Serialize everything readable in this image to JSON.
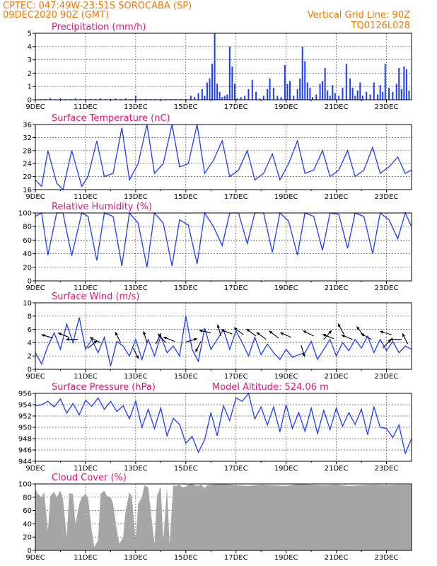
{
  "header": {
    "line1": "CPTEC:   047:49W-23:51S   SOROCABA (SP)",
    "line2": "09DEC2020 90Z (GMT)",
    "right1": "Vertical Grid Line: 90Z",
    "right2": "TQ0126L028"
  },
  "colors": {
    "header": "#f07800",
    "panel_title": "#e0157a",
    "series": "#1c3cff",
    "cloud": "#a6a6a6",
    "grid": "#555555"
  },
  "x_axis": {
    "labels": [
      "9DEC",
      "11DEC",
      "13DEC",
      "15DEC",
      "17DEC",
      "19DEC",
      "21DEC",
      "23DEC"
    ],
    "start_day": 9,
    "end_day": 24
  },
  "chart_data": [
    {
      "type": "bar",
      "title": "Precipitation (mm/h)",
      "ylim": [
        0,
        5
      ],
      "yticks": [
        "0",
        "1",
        "2",
        "3",
        "4",
        "5"
      ],
      "series": [
        {
          "x": [
            9.2,
            9.4,
            9.6,
            9.8,
            10.0,
            10.2,
            10.4,
            10.6,
            10.8,
            11.0,
            11.2,
            11.4,
            11.6,
            11.8,
            12.0,
            12.2,
            12.4,
            12.6,
            12.8,
            13.0,
            13.2,
            13.4,
            13.6,
            13.8,
            14.0,
            14.2,
            14.4,
            14.6,
            14.8,
            15.0,
            15.2,
            15.35,
            15.5,
            15.65,
            15.75,
            15.85,
            15.95,
            16.05,
            16.15,
            16.25,
            16.35,
            16.45,
            16.55,
            16.65,
            16.75,
            16.85,
            16.95,
            17.05,
            17.2,
            17.35,
            17.5,
            17.65,
            17.8,
            17.95,
            18.1,
            18.25,
            18.35,
            18.5,
            18.65,
            18.8,
            18.95,
            19.05,
            19.15,
            19.3,
            19.45,
            19.55,
            19.65,
            19.75,
            19.85,
            19.95,
            20.05,
            20.2,
            20.35,
            20.45,
            20.55,
            20.65,
            20.75,
            20.85,
            20.95,
            21.1,
            21.25,
            21.4,
            21.55,
            21.65,
            21.75,
            21.85,
            21.95,
            22.05,
            22.2,
            22.35,
            22.5,
            22.65,
            22.75,
            22.85,
            22.95,
            23.1,
            23.25,
            23.4,
            23.5,
            23.6,
            23.7,
            23.8,
            23.9
          ],
          "values": [
            0.05,
            0.05,
            0.1,
            0.05,
            0.1,
            0.05,
            0.05,
            0.1,
            0.05,
            0.05,
            0.05,
            0.05,
            0.1,
            0.05,
            0.05,
            0.1,
            0.05,
            0.1,
            0.05,
            0.3,
            0.05,
            0.05,
            0.05,
            0.05,
            0.05,
            0.05,
            0.05,
            0.05,
            0.05,
            0.05,
            0.3,
            0.2,
            0.5,
            0.8,
            0.3,
            1.3,
            1.6,
            2.7,
            5.0,
            1.2,
            0.6,
            0.2,
            0.3,
            0.4,
            4.0,
            2.5,
            1.2,
            0.1,
            0.2,
            0.3,
            0.8,
            1.5,
            0.6,
            0.1,
            0.3,
            0.8,
            1.6,
            0.9,
            0.3,
            0.2,
            2.6,
            1.2,
            1.4,
            0.3,
            0.8,
            1.6,
            4.0,
            2.9,
            1.3,
            0.9,
            0.2,
            0.4,
            1.2,
            1.4,
            2.4,
            0.7,
            0.3,
            1.1,
            0.5,
            0.3,
            0.9,
            2.7,
            1.6,
            0.9,
            0.3,
            0.7,
            1.3,
            0.3,
            0.6,
            0.4,
            1.3,
            0.4,
            1.1,
            0.6,
            2.7,
            0.9,
            0.6,
            1.2,
            2.4,
            0.8,
            2.5,
            2.3,
            0.7
          ]
        }
      ]
    },
    {
      "type": "line",
      "title": "Surface Temperature (nC)",
      "ylim": [
        16,
        36
      ],
      "yticks": [
        "16",
        "20",
        "24",
        "28",
        "32",
        "36"
      ],
      "series": [
        {
          "x": [
            9.0,
            9.25,
            9.5,
            9.85,
            10.1,
            10.45,
            10.85,
            11.1,
            11.45,
            11.75,
            12.1,
            12.45,
            12.75,
            13.1,
            13.45,
            13.75,
            14.1,
            14.45,
            14.75,
            15.1,
            15.45,
            15.75,
            16.1,
            16.45,
            16.75,
            17.1,
            17.45,
            17.75,
            18.1,
            18.45,
            18.75,
            19.1,
            19.45,
            19.75,
            20.1,
            20.45,
            20.75,
            21.1,
            21.45,
            21.75,
            22.1,
            22.45,
            22.75,
            23.1,
            23.45,
            23.75,
            24.0
          ],
          "values": [
            19,
            17,
            28,
            18,
            16,
            28,
            17,
            20,
            31,
            20,
            21,
            35,
            19,
            24,
            36,
            21,
            24,
            36,
            23,
            24,
            36,
            21,
            25,
            31,
            20,
            22,
            28,
            19,
            21,
            27,
            19,
            24,
            31,
            21,
            22,
            28,
            20,
            22,
            28,
            20,
            22,
            29,
            21,
            23,
            26,
            21,
            22
          ]
        }
      ]
    },
    {
      "type": "line",
      "title": "Relative Humidity (%)",
      "ylim": [
        0,
        100
      ],
      "yticks": [
        "0",
        "20",
        "40",
        "60",
        "80",
        "100"
      ],
      "series": [
        {
          "x": [
            9.0,
            9.25,
            9.5,
            9.85,
            10.1,
            10.45,
            10.85,
            11.1,
            11.45,
            11.75,
            12.1,
            12.45,
            12.75,
            13.1,
            13.45,
            13.75,
            14.1,
            14.45,
            14.75,
            15.1,
            15.45,
            15.75,
            16.1,
            16.45,
            16.75,
            17.1,
            17.45,
            17.75,
            18.1,
            18.45,
            18.75,
            19.1,
            19.45,
            19.75,
            20.1,
            20.45,
            20.75,
            21.1,
            21.45,
            21.75,
            22.1,
            22.45,
            22.75,
            23.1,
            23.45,
            23.75,
            24.0
          ],
          "values": [
            95,
            100,
            38,
            100,
            100,
            37,
            100,
            95,
            30,
            100,
            95,
            22,
            100,
            85,
            20,
            100,
            85,
            22,
            90,
            82,
            25,
            100,
            80,
            52,
            100,
            100,
            55,
            100,
            100,
            42,
            100,
            88,
            38,
            100,
            95,
            45,
            100,
            98,
            48,
            100,
            95,
            40,
            100,
            90,
            62,
            100,
            80
          ]
        }
      ]
    },
    {
      "type": "line",
      "title": "Surface Wind (m/s)",
      "ylim": [
        0,
        10
      ],
      "yticks": [
        "0",
        "2",
        "4",
        "6",
        "8",
        "10"
      ],
      "series": [
        {
          "x": [
            9.0,
            9.25,
            9.5,
            9.75,
            10.0,
            10.25,
            10.5,
            10.75,
            11.0,
            11.25,
            11.5,
            11.75,
            12.0,
            12.25,
            12.5,
            12.75,
            13.0,
            13.25,
            13.5,
            13.75,
            14.0,
            14.25,
            14.5,
            14.75,
            15.0,
            15.25,
            15.5,
            15.75,
            16.0,
            16.25,
            16.5,
            16.75,
            17.0,
            17.25,
            17.5,
            17.75,
            18.0,
            18.25,
            18.5,
            18.75,
            19.0,
            19.25,
            19.5,
            19.75,
            20.0,
            20.25,
            20.5,
            20.75,
            21.0,
            21.25,
            21.5,
            21.75,
            22.0,
            22.25,
            22.5,
            22.75,
            23.0,
            23.25,
            23.5,
            23.75,
            24.0
          ],
          "values": [
            2.5,
            0.8,
            3.5,
            5.5,
            3.0,
            6.8,
            4.0,
            7.8,
            3.0,
            4.5,
            2.5,
            4.8,
            0.5,
            4.2,
            3.5,
            2.0,
            4.5,
            1.5,
            4.5,
            2.0,
            5.0,
            2.5,
            3.5,
            2.0,
            8.0,
            3.0,
            1.2,
            6.2,
            3.0,
            4.5,
            6.0,
            3.0,
            5.8,
            4.0,
            2.0,
            4.8,
            2.2,
            3.8,
            2.5,
            1.5,
            3.0,
            1.8,
            2.2,
            2.5,
            4.2,
            1.5,
            3.0,
            4.5,
            2.0,
            4.0,
            2.8,
            4.5,
            3.2,
            5.0,
            2.5,
            4.5,
            2.8,
            4.2,
            2.5,
            3.5,
            3.0
          ]
        }
      ],
      "vectors": [
        {
          "x": 9.7,
          "y": 4.7,
          "u": -1.0,
          "v": 0.3
        },
        {
          "x": 10.35,
          "y": 4.8,
          "u": -1.0,
          "v": 0.4
        },
        {
          "x": 10.7,
          "y": 4.5,
          "u": -1.0,
          "v": 0.0
        },
        {
          "x": 11.1,
          "y": 3.2,
          "u": 1.0,
          "v": 0.8
        },
        {
          "x": 11.6,
          "y": 4.0,
          "u": -1.0,
          "v": 0.5
        },
        {
          "x": 12.4,
          "y": 4.0,
          "u": -0.5,
          "v": 1.0
        },
        {
          "x": 12.9,
          "y": 3.2,
          "u": 0.5,
          "v": -1.0
        },
        {
          "x": 13.45,
          "y": 4.0,
          "u": -0.3,
          "v": 1.0
        },
        {
          "x": 13.8,
          "y": 3.8,
          "u": 0.5,
          "v": 1.0
        },
        {
          "x": 14.2,
          "y": 4.0,
          "u": -0.7,
          "v": 0.8
        },
        {
          "x": 14.55,
          "y": 4.2,
          "u": -1.0,
          "v": 0.4
        },
        {
          "x": 15.0,
          "y": 4.1,
          "u": 1.0,
          "v": 0.3
        },
        {
          "x": 15.6,
          "y": 4.2,
          "u": -0.5,
          "v": -1.0
        },
        {
          "x": 16.0,
          "y": 5.5,
          "u": -1.0,
          "v": 0.2
        },
        {
          "x": 16.4,
          "y": 5.0,
          "u": -0.3,
          "v": 1.0
        },
        {
          "x": 16.85,
          "y": 5.3,
          "u": -1.0,
          "v": 0.4
        },
        {
          "x": 17.3,
          "y": 5.2,
          "u": -0.8,
          "v": 0.6
        },
        {
          "x": 17.8,
          "y": 5.0,
          "u": -0.8,
          "v": 0.6
        },
        {
          "x": 18.2,
          "y": 4.5,
          "u": -0.8,
          "v": 0.6
        },
        {
          "x": 18.7,
          "y": 4.7,
          "u": -0.8,
          "v": 0.6
        },
        {
          "x": 19.2,
          "y": 4.8,
          "u": -0.9,
          "v": 0.4
        },
        {
          "x": 19.6,
          "y": 3.6,
          "u": 0.3,
          "v": -1.0
        },
        {
          "x": 20.1,
          "y": 5.0,
          "u": -1.0,
          "v": 0.5
        },
        {
          "x": 20.5,
          "y": 4.5,
          "u": 0.7,
          "v": 0.8
        },
        {
          "x": 20.9,
          "y": 4.6,
          "u": -1.0,
          "v": 0.4
        },
        {
          "x": 21.3,
          "y": 5.3,
          "u": -0.5,
          "v": 0.9
        },
        {
          "x": 21.65,
          "y": 4.5,
          "u": -1.0,
          "v": 0.4
        },
        {
          "x": 22.1,
          "y": 5.0,
          "u": -0.6,
          "v": 0.8
        },
        {
          "x": 22.4,
          "y": 4.5,
          "u": -0.9,
          "v": 0.5
        },
        {
          "x": 22.85,
          "y": 3.2,
          "u": 0.8,
          "v": 0.8
        },
        {
          "x": 23.2,
          "y": 5.2,
          "u": -1.0,
          "v": 0.3
        },
        {
          "x": 23.6,
          "y": 4.5,
          "u": -1.0,
          "v": 0.0
        },
        {
          "x": 23.85,
          "y": 3.8,
          "u": -0.5,
          "v": 1.0
        }
      ]
    },
    {
      "type": "line",
      "title": "Surface Pressure (hPa)",
      "annotation": "Model Altitude: 524.06 m",
      "ylim": [
        944,
        956
      ],
      "yticks": [
        "944",
        "946",
        "948",
        "950",
        "952",
        "954",
        "956"
      ],
      "series": [
        {
          "x": [
            9.0,
            9.25,
            9.5,
            9.75,
            10.0,
            10.25,
            10.5,
            10.75,
            11.0,
            11.25,
            11.5,
            11.75,
            12.0,
            12.25,
            12.5,
            12.75,
            13.0,
            13.25,
            13.5,
            13.75,
            14.0,
            14.25,
            14.5,
            14.75,
            15.0,
            15.25,
            15.5,
            15.75,
            16.0,
            16.25,
            16.5,
            16.75,
            17.0,
            17.25,
            17.5,
            17.75,
            18.0,
            18.25,
            18.5,
            18.75,
            19.0,
            19.25,
            19.5,
            19.75,
            20.0,
            20.25,
            20.5,
            20.75,
            21.0,
            21.25,
            21.5,
            21.75,
            22.0,
            22.25,
            22.5,
            22.75,
            23.0,
            23.25,
            23.5,
            23.75,
            24.0
          ],
          "values": [
            953.8,
            954,
            954.6,
            953.6,
            955,
            952.5,
            954.2,
            952.2,
            954.8,
            953.7,
            955.2,
            953.2,
            954.6,
            952.8,
            953.8,
            951.5,
            954.6,
            950,
            953.2,
            949.8,
            953.4,
            948.5,
            951.6,
            950.5,
            947.2,
            948.4,
            945.6,
            947.8,
            952.6,
            948.5,
            953.8,
            951.2,
            955.2,
            954.6,
            956,
            951.5,
            953.6,
            950.4,
            953.6,
            949.2,
            954,
            949.8,
            952.6,
            949.3,
            953.4,
            948.9,
            953,
            949.6,
            953.4,
            950.2,
            952.6,
            950.5,
            953.2,
            948.7,
            953.6,
            950,
            949.8,
            948.2,
            950.4,
            945.4,
            948
          ]
        }
      ]
    },
    {
      "type": "area",
      "title": "Cloud Cover (%)",
      "ylim": [
        0,
        100
      ],
      "yticks": [
        "0",
        "20",
        "40",
        "60",
        "80",
        "100"
      ],
      "series": [
        {
          "x": [
            9.0,
            9.1,
            9.25,
            9.35,
            9.5,
            9.6,
            9.75,
            9.85,
            10.0,
            10.1,
            10.25,
            10.35,
            10.5,
            10.6,
            10.75,
            10.85,
            11.0,
            11.1,
            11.25,
            11.35,
            11.5,
            11.6,
            11.75,
            11.85,
            12.0,
            12.1,
            12.25,
            12.35,
            12.5,
            12.6,
            12.75,
            12.85,
            13.0,
            13.1,
            13.25,
            13.35,
            13.5,
            13.6,
            13.75,
            13.85,
            14.0,
            14.1,
            14.25,
            14.35,
            14.5,
            14.6,
            14.75,
            14.85,
            15.0,
            15.1,
            15.25,
            15.35,
            15.5,
            15.6,
            15.75,
            15.85,
            16.0,
            16.5,
            17.0,
            17.5,
            18.0,
            18.5,
            19.0,
            19.5,
            20.0,
            20.5,
            21.0,
            21.5,
            22.0,
            22.5,
            23.0,
            23.5,
            24.0
          ],
          "values": [
            92,
            85,
            80,
            88,
            30,
            82,
            88,
            80,
            90,
            78,
            20,
            86,
            85,
            40,
            70,
            80,
            85,
            80,
            30,
            5,
            15,
            85,
            90,
            82,
            80,
            70,
            30,
            10,
            20,
            60,
            88,
            80,
            15,
            70,
            80,
            98,
            95,
            60,
            10,
            82,
            96,
            15,
            95,
            10,
            98,
            97,
            99,
            95,
            96,
            99,
            100,
            98,
            97,
            99,
            94,
            98,
            99,
            100,
            98,
            97,
            99,
            98,
            97,
            100,
            99,
            98,
            99,
            97,
            98,
            99,
            98,
            99,
            99
          ]
        }
      ]
    }
  ]
}
